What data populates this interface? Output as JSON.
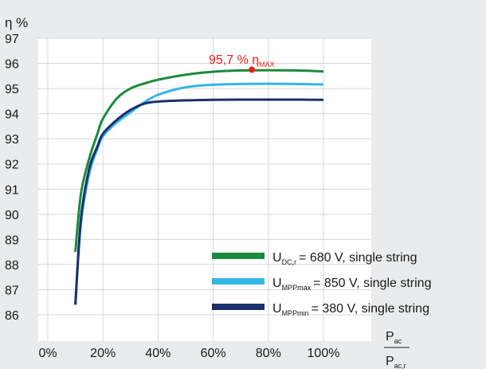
{
  "chart_data": {
    "type": "line",
    "ylabel": "η %",
    "xlabel": {
      "numerator": "P",
      "numerator_sub": "ac",
      "denominator": "P",
      "denominator_sub": "ac,r"
    },
    "xlim": [
      0,
      100
    ],
    "ylim": [
      86,
      97
    ],
    "y_ticks": [
      "86",
      "87",
      "88",
      "89",
      "90",
      "91",
      "92",
      "93",
      "94",
      "95",
      "96",
      "97"
    ],
    "x_ticks": [
      "0%",
      "20%",
      "40%",
      "60%",
      "80%",
      "100%"
    ],
    "grid": true,
    "legend_placement": "bottom-right",
    "annotation": {
      "text": "95,7 % η",
      "sub": "MAX",
      "x": 74,
      "y": 95.75,
      "color": "#e2231a"
    },
    "series": [
      {
        "name": "= 680 V, single string",
        "symbol": "U",
        "sub": "DC,r",
        "color": "#1a8a3a",
        "x": [
          10,
          12,
          15,
          18,
          20,
          25,
          30,
          35,
          40,
          50,
          60,
          70,
          80,
          90,
          100
        ],
        "y": [
          88.5,
          90.8,
          92.2,
          93.2,
          93.8,
          94.6,
          95.0,
          95.2,
          95.35,
          95.55,
          95.67,
          95.72,
          95.73,
          95.72,
          95.68
        ]
      },
      {
        "name": "= 850 V, single string",
        "symbol": "U",
        "sub": "MPPmax",
        "color": "#33b6e6",
        "x": [
          10,
          12,
          15,
          18,
          20,
          25,
          30,
          35,
          40,
          50,
          60,
          70,
          80,
          90,
          100
        ],
        "y": [
          86.4,
          89.6,
          91.6,
          92.6,
          93.1,
          93.65,
          94.05,
          94.45,
          94.75,
          95.05,
          95.15,
          95.18,
          95.19,
          95.18,
          95.16
        ]
      },
      {
        "name": "= 380 V, single string",
        "symbol": "U",
        "sub": "MPPmin",
        "color": "#1a2f6b",
        "x": [
          10,
          12,
          15,
          18,
          20,
          25,
          30,
          35,
          40,
          50,
          60,
          70,
          80,
          90,
          100
        ],
        "y": [
          86.4,
          89.8,
          91.8,
          92.7,
          93.2,
          93.75,
          94.15,
          94.4,
          94.48,
          94.53,
          94.55,
          94.56,
          94.56,
          94.56,
          94.55
        ]
      }
    ]
  }
}
